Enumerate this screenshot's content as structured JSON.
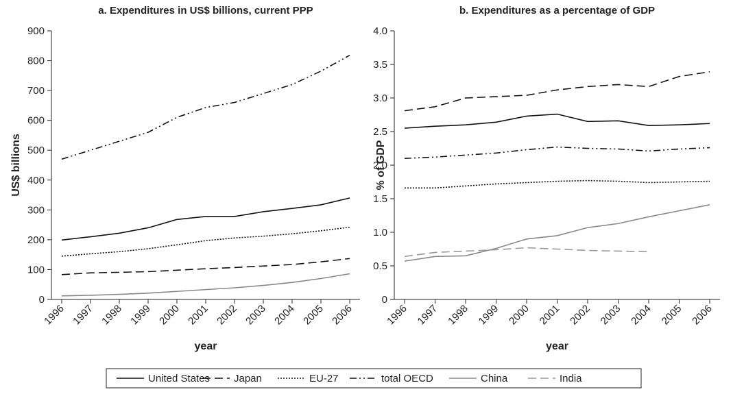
{
  "chart_data": [
    {
      "type": "line",
      "title": "a. Expenditures in US$ billions, current PPP",
      "x_label": "year",
      "y_label": "US$ billions",
      "categories": [
        "1996",
        "1997",
        "1998",
        "1999",
        "2000",
        "2001",
        "2002",
        "2003",
        "2004",
        "2005",
        "2006"
      ],
      "ylim": [
        0,
        900
      ],
      "yticks": [
        0,
        100,
        200,
        300,
        400,
        500,
        600,
        700,
        800,
        900
      ],
      "series": [
        {
          "name": "United States",
          "color": "#111111",
          "dash": "solid",
          "values": [
            199,
            210,
            222,
            240,
            268,
            278,
            278,
            294,
            305,
            317,
            340
          ]
        },
        {
          "name": "Japan",
          "color": "#111111",
          "dash": "dashed",
          "values": [
            83,
            89,
            91,
            93,
            98,
            103,
            107,
            112,
            117,
            126,
            137
          ]
        },
        {
          "name": "EU-27",
          "color": "#111111",
          "dash": "dotted",
          "values": [
            145,
            153,
            160,
            170,
            183,
            197,
            206,
            212,
            220,
            230,
            242
          ]
        },
        {
          "name": "total OECD",
          "color": "#111111",
          "dash": "dashdotdot",
          "values": [
            470,
            500,
            530,
            560,
            610,
            643,
            660,
            690,
            720,
            765,
            818
          ]
        },
        {
          "name": "China",
          "color": "#888888",
          "dash": "solid",
          "values": [
            12,
            14,
            17,
            21,
            27,
            33,
            39,
            47,
            57,
            70,
            86
          ]
        }
      ]
    },
    {
      "type": "line",
      "title": "b. Expenditures as a percentage of GDP",
      "x_label": "year",
      "y_label": "% of GDP",
      "categories": [
        "1996",
        "1997",
        "1998",
        "1999",
        "2000",
        "2001",
        "2002",
        "2003",
        "2004",
        "2005",
        "2006"
      ],
      "ylim": [
        0,
        4
      ],
      "yticks": [
        0,
        0.5,
        {
          "value": 1,
          "label": "1.0"
        },
        1.5,
        {
          "value": 2,
          "label": "2.0"
        },
        2.5,
        {
          "value": 3,
          "label": "3.0"
        },
        3.5,
        {
          "value": 4,
          "label": "4.0"
        }
      ],
      "series": [
        {
          "name": "United States",
          "color": "#111111",
          "dash": "solid",
          "values": [
            2.55,
            2.58,
            2.6,
            2.64,
            2.73,
            2.76,
            2.65,
            2.66,
            2.59,
            2.6,
            2.62
          ]
        },
        {
          "name": "Japan",
          "color": "#111111",
          "dash": "dashed",
          "values": [
            2.81,
            2.87,
            3.0,
            3.02,
            3.04,
            3.12,
            3.17,
            3.2,
            3.17,
            3.32,
            3.39
          ]
        },
        {
          "name": "EU-27",
          "color": "#111111",
          "dash": "dotted",
          "values": [
            1.66,
            1.66,
            1.69,
            1.72,
            1.74,
            1.76,
            1.77,
            1.76,
            1.74,
            1.75,
            1.76
          ]
        },
        {
          "name": "total OECD",
          "color": "#111111",
          "dash": "dashdotdot",
          "values": [
            2.1,
            2.12,
            2.15,
            2.18,
            2.23,
            2.27,
            2.25,
            2.24,
            2.21,
            2.24,
            2.26
          ]
        },
        {
          "name": "China",
          "color": "#888888",
          "dash": "solid",
          "values": [
            0.57,
            0.64,
            0.65,
            0.76,
            0.9,
            0.95,
            1.07,
            1.13,
            1.23,
            1.32,
            1.41
          ]
        },
        {
          "name": "India",
          "color": "#999999",
          "dash": "dashed",
          "values": [
            0.64,
            0.7,
            0.72,
            0.74,
            0.77,
            0.75,
            0.73,
            0.72,
            0.71,
            null,
            null
          ]
        }
      ]
    }
  ]
}
